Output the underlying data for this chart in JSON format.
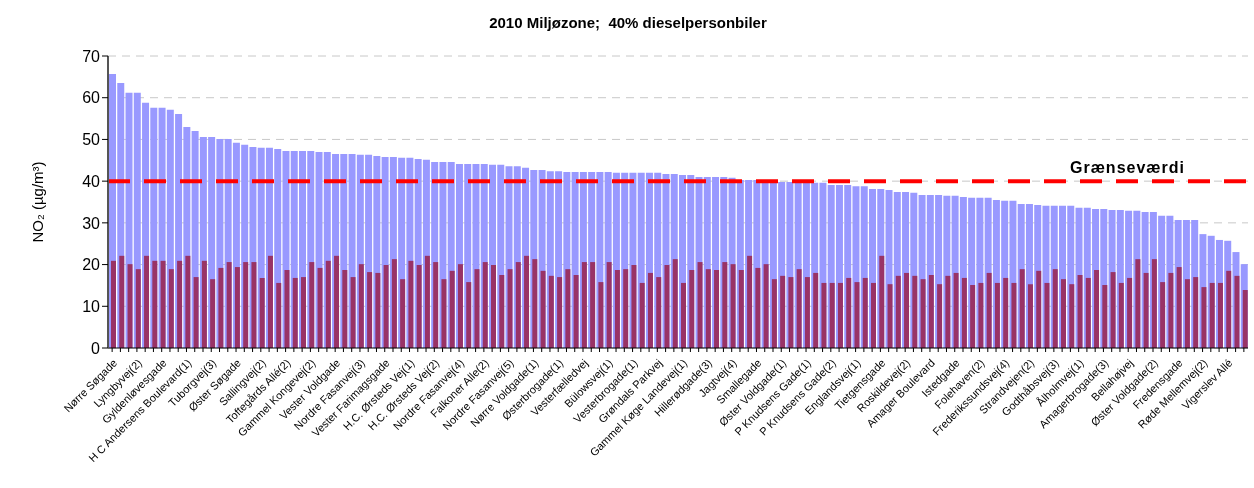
{
  "chart_data": {
    "type": "bar",
    "title": "2010 Miljøzone;  40% dieselpersonbiler",
    "ylabel": "NO₂ (µg/m³)",
    "categories": [
      "Nørre Søgade",
      null,
      null,
      "Lyngbyvej(2)",
      null,
      null,
      "Gyldenløvesgade",
      null,
      null,
      "H C Andersens Boulevard(1)",
      null,
      null,
      "Tuborgvej(3)",
      null,
      null,
      "Øster Søgade",
      null,
      null,
      "Sallingvej(2)",
      null,
      null,
      "Toftegårds Allé(2)",
      null,
      null,
      "Gammel Kongevej(2)",
      null,
      null,
      "Vester Voldgade",
      null,
      null,
      "Nordre Fasanvej(3)",
      null,
      null,
      "Vester Farimagsgade",
      null,
      null,
      "H.C. Ørsteds Vej(1)",
      null,
      null,
      "H.C. Ørsteds Vej(2)",
      null,
      null,
      "Nordre Fasanvej(4)",
      null,
      null,
      "Falkoner Alle(2)",
      null,
      null,
      "Nordre Fasanvej(5)",
      null,
      null,
      "Nørre Voldgade(1)",
      null,
      null,
      "Østerbrogade(1)",
      null,
      null,
      "Vesterfælledvej",
      null,
      null,
      "Bülowsvej(1)",
      null,
      null,
      "Vesterbrogade(1)",
      null,
      null,
      "Grøndals Parkvej",
      null,
      null,
      "Gammel Køge Landevej(1)",
      null,
      null,
      "Hillerødgade(3)",
      null,
      null,
      "Jagtvej(4)",
      null,
      null,
      "Smallegade",
      null,
      null,
      "Øster Voldgade(1)",
      null,
      null,
      "P Knudsens Gade(1)",
      null,
      null,
      "P Knudsens Gade(2)",
      null,
      null,
      "Englandsvej(1)",
      null,
      null,
      "Tietgensgade",
      null,
      null,
      "Roskildevej(2)",
      null,
      null,
      "Amager Boulevard",
      null,
      null,
      "Istedgade",
      null,
      null,
      "Folehaven(2)",
      null,
      null,
      "Frederikssundsvej(4)",
      null,
      null,
      "Strandvejen(2)",
      null,
      null,
      "Godthåbsvej(3)",
      null,
      null,
      "Ålholmvej(1)",
      null,
      null,
      "Amagerbrogade(3)",
      null,
      null,
      "Bellahøjvej",
      null,
      null,
      "Øster Voldgade(2)",
      null,
      null,
      "Fredensgade",
      null,
      null,
      "Røde Mellemvej(2)",
      null,
      null,
      "Vigerslev Allé",
      null,
      null
    ],
    "series": [
      {
        "color": "#9999ff",
        "values": [
          65.7,
          63.5,
          61.2,
          61.2,
          58.8,
          57.6,
          57.6,
          57.1,
          56.1,
          53.0,
          52.0,
          50.6,
          50.6,
          50.1,
          50.1,
          49.2,
          48.7,
          48.2,
          48.0,
          48.0,
          47.7,
          47.2,
          47.2,
          47.2,
          47.2,
          47.0,
          47.0,
          46.5,
          46.5,
          46.5,
          46.3,
          46.3,
          46.0,
          45.8,
          45.8,
          45.6,
          45.6,
          45.3,
          45.1,
          44.6,
          44.6,
          44.6,
          44.1,
          44.1,
          44.1,
          44.1,
          43.9,
          43.9,
          43.6,
          43.6,
          43.2,
          42.7,
          42.7,
          42.4,
          42.4,
          42.2,
          42.2,
          42.2,
          42.2,
          42.2,
          42.2,
          42.0,
          42.0,
          42.0,
          42.0,
          42.0,
          42.0,
          41.7,
          41.7,
          41.5,
          41.5,
          41.0,
          41.0,
          41.0,
          41.0,
          40.8,
          40.3,
          40.3,
          40.3,
          40.0,
          40.0,
          39.8,
          39.8,
          39.8,
          39.8,
          39.6,
          39.6,
          39.1,
          39.1,
          39.1,
          38.8,
          38.8,
          38.1,
          38.1,
          37.9,
          37.4,
          37.4,
          37.2,
          36.7,
          36.7,
          36.7,
          36.5,
          36.5,
          36.2,
          36.0,
          36.0,
          36.0,
          35.5,
          35.3,
          35.3,
          34.5,
          34.5,
          34.3,
          34.1,
          34.1,
          34.1,
          34.1,
          33.6,
          33.6,
          33.3,
          33.3,
          33.1,
          33.1,
          32.9,
          32.9,
          32.6,
          32.6,
          31.7,
          31.7,
          30.7,
          30.7,
          30.7,
          27.3,
          26.9,
          25.9,
          25.7,
          23.0,
          20.1
        ]
      },
      {
        "color": "#993366",
        "values": [
          20.9,
          22.1,
          20.1,
          18.9,
          22.1,
          20.9,
          20.9,
          18.9,
          20.9,
          22.1,
          17.0,
          20.9,
          16.5,
          19.2,
          20.6,
          19.4,
          20.6,
          20.6,
          16.8,
          22.1,
          15.6,
          18.7,
          16.8,
          17.0,
          20.6,
          19.2,
          20.9,
          22.1,
          18.7,
          17.0,
          20.1,
          18.2,
          18.0,
          19.9,
          21.3,
          16.5,
          20.9,
          19.9,
          22.1,
          20.6,
          16.5,
          18.5,
          20.1,
          15.8,
          18.9,
          20.6,
          19.9,
          17.5,
          18.9,
          20.6,
          22.1,
          21.3,
          18.5,
          17.3,
          17.0,
          18.9,
          17.5,
          20.6,
          20.6,
          15.8,
          20.6,
          18.7,
          18.9,
          19.9,
          15.6,
          18.0,
          17.0,
          19.9,
          21.3,
          15.6,
          18.7,
          20.6,
          18.9,
          18.7,
          20.6,
          20.1,
          18.7,
          22.1,
          19.2,
          20.1,
          16.5,
          17.3,
          17.0,
          18.9,
          17.0,
          18.0,
          15.6,
          15.6,
          15.6,
          16.8,
          15.8,
          16.8,
          15.6,
          22.1,
          15.3,
          17.3,
          18.0,
          17.3,
          16.5,
          17.5,
          15.3,
          17.3,
          18.0,
          16.8,
          15.1,
          15.6,
          18.0,
          15.6,
          16.8,
          15.6,
          18.9,
          15.3,
          18.5,
          15.6,
          18.9,
          16.5,
          15.3,
          17.5,
          16.8,
          18.7,
          15.1,
          18.2,
          15.6,
          16.8,
          21.3,
          18.0,
          21.3,
          15.8,
          18.0,
          19.4,
          16.5,
          17.0,
          14.6,
          15.6,
          15.6,
          18.5,
          17.3,
          13.9
        ]
      }
    ],
    "ylim": [
      0,
      70
    ],
    "yticks": [
      0,
      10,
      20,
      30,
      40,
      50,
      60,
      70
    ],
    "grid": "y",
    "ref_lines": [
      {
        "axis": "y",
        "value": 40,
        "label": "Grænseværdi",
        "color": "#ff0000",
        "line_style": "dashed"
      }
    ]
  }
}
